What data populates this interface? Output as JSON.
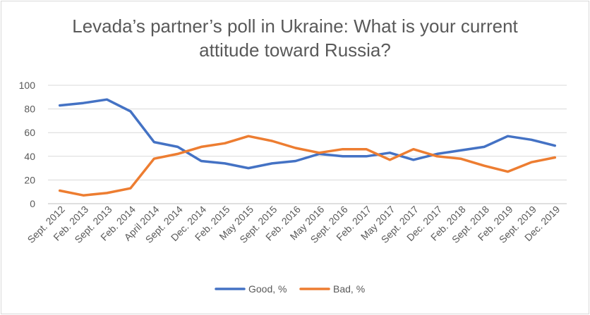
{
  "chart_data": {
    "type": "line",
    "title_lines": [
      "Levada’s partner’s poll in Ukraine: What is your current",
      "attitude toward Russia?"
    ],
    "categories": [
      "Sept. 2012",
      "Feb. 2013",
      "Sept. 2013",
      "Feb. 2014",
      "April 2014",
      "Sept. 2014",
      "Dec. 2014",
      "Feb. 2015",
      "May 2015",
      "Sept. 2015",
      "Feb. 2016",
      "May 2016",
      "Sept. 2016",
      "Feb. 2017",
      "May 2017",
      "Sept. 2017",
      "Dec. 2017",
      "Feb. 2018",
      "Sept. 2018",
      "Feb. 2019",
      "Sept. 2019",
      "Dec. 2019"
    ],
    "series": [
      {
        "name": "Good, %",
        "color": "#4472c4",
        "values": [
          83,
          85,
          88,
          78,
          52,
          48,
          36,
          34,
          30,
          34,
          36,
          42,
          40,
          40,
          43,
          37,
          42,
          45,
          48,
          57,
          54,
          49
        ]
      },
      {
        "name": "Bad, %",
        "color": "#ed7d31",
        "values": [
          11,
          7,
          9,
          13,
          38,
          42,
          48,
          51,
          57,
          53,
          47,
          43,
          46,
          46,
          37,
          46,
          40,
          38,
          32,
          27,
          35,
          39
        ]
      }
    ],
    "ylim": [
      0,
      100
    ],
    "yticks": [
      0,
      20,
      40,
      60,
      80,
      100
    ],
    "grid": true,
    "legend_position": "bottom"
  }
}
